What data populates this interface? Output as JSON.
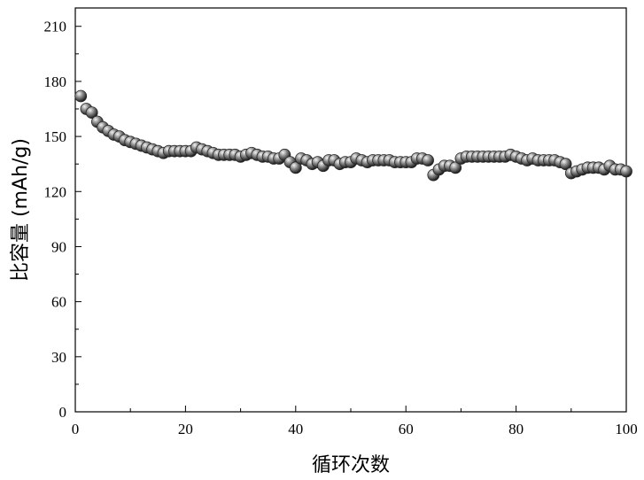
{
  "chart_data": {
    "type": "scatter",
    "xlabel": "循环次数",
    "ylabel": "比容量 (mAh/g)",
    "xlim": [
      0,
      100
    ],
    "ylim": [
      0,
      220
    ],
    "xticks": [
      0,
      20,
      40,
      60,
      80,
      100
    ],
    "yticks": [
      0,
      30,
      60,
      90,
      120,
      150,
      180,
      210
    ],
    "grid": false,
    "legend": "none",
    "marker_color": "#2a2a2a",
    "series": [
      {
        "x": [
          1,
          2,
          3,
          4,
          5,
          6,
          7,
          8,
          9,
          10,
          11,
          12,
          13,
          14,
          15,
          16,
          17,
          18,
          19,
          20,
          21,
          22,
          23,
          24,
          25,
          26,
          27,
          28,
          29,
          30,
          31,
          32,
          33,
          34,
          35,
          36,
          37,
          38,
          39,
          40,
          41,
          42,
          43,
          44,
          45,
          46,
          47,
          48,
          49,
          50,
          51,
          52,
          53,
          54,
          55,
          56,
          57,
          58,
          59,
          60,
          61,
          62,
          63,
          64,
          65,
          66,
          67,
          68,
          69,
          70,
          71,
          72,
          73,
          74,
          75,
          76,
          77,
          78,
          79,
          80,
          81,
          82,
          83,
          84,
          85,
          86,
          87,
          88,
          89,
          90,
          91,
          92,
          93,
          94,
          95,
          96,
          97,
          98,
          99,
          100
        ],
        "values": [
          172,
          165,
          163,
          158,
          155,
          153,
          151,
          150,
          148,
          147,
          146,
          145,
          144,
          143,
          142,
          141,
          142,
          142,
          142,
          142,
          142,
          144,
          143,
          142,
          141,
          140,
          140,
          140,
          140,
          139,
          140,
          141,
          140,
          139,
          139,
          138,
          138,
          140,
          136,
          133,
          138,
          137,
          135,
          136,
          134,
          137,
          137,
          135,
          136,
          136,
          138,
          137,
          136,
          137,
          137,
          137,
          137,
          136,
          136,
          136,
          136,
          138,
          138,
          137,
          129,
          132,
          134,
          134,
          133,
          138,
          139,
          139,
          139,
          139,
          139,
          139,
          139,
          139,
          140,
          139,
          138,
          137,
          138,
          137,
          137,
          137,
          137,
          136,
          135,
          130,
          131,
          132,
          133,
          133,
          133,
          132,
          134,
          132,
          132,
          131
        ]
      }
    ]
  }
}
